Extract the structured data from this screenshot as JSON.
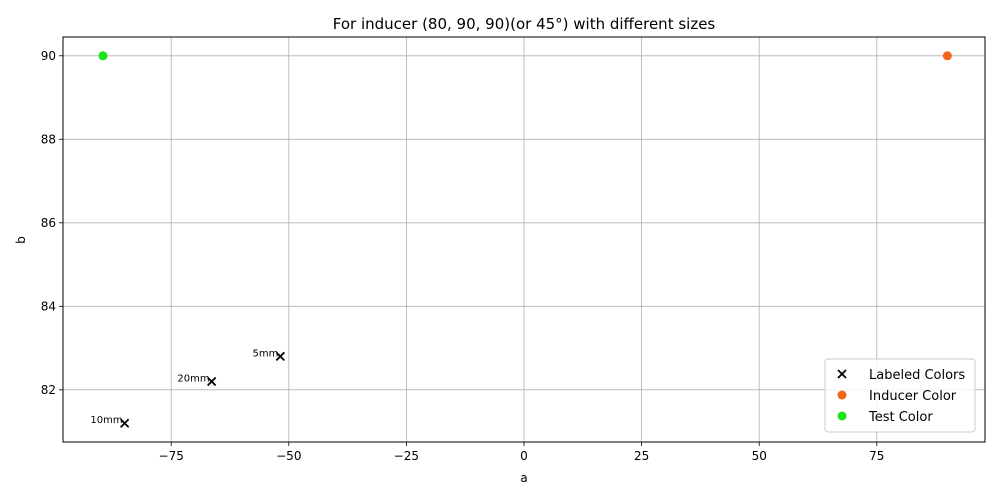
{
  "chart_data": {
    "type": "scatter",
    "title": "For inducer (80, 90, 90)(or 45°) with different sizes",
    "xlabel": "a",
    "ylabel": "b",
    "xlim": [
      -98,
      98
    ],
    "ylim": [
      80.75,
      90.45
    ],
    "x_ticks": [
      -75,
      -50,
      -25,
      0,
      25,
      50,
      75
    ],
    "x_tick_labels": [
      "−75",
      "−50",
      "−25",
      "0",
      "25",
      "50",
      "75"
    ],
    "y_ticks": [
      82,
      84,
      86,
      88,
      90
    ],
    "y_tick_labels": [
      "82",
      "84",
      "86",
      "88",
      "90"
    ],
    "grid": true,
    "legend_position": "lower right",
    "series": [
      {
        "name": "Labeled Colors",
        "marker": "x",
        "color": "#000000",
        "points": [
          {
            "x": -51.8,
            "y": 82.8,
            "label": "5mm"
          },
          {
            "x": -66.4,
            "y": 82.2,
            "label": "20mm"
          },
          {
            "x": -84.9,
            "y": 81.2,
            "label": "10mm"
          }
        ]
      },
      {
        "name": "Inducer Color",
        "marker": "o",
        "color": "#f26419",
        "points": [
          {
            "x": 90,
            "y": 90
          }
        ]
      },
      {
        "name": "Test Color",
        "marker": "o",
        "color": "#19e619",
        "points": [
          {
            "x": -89.5,
            "y": 90
          }
        ]
      }
    ]
  }
}
